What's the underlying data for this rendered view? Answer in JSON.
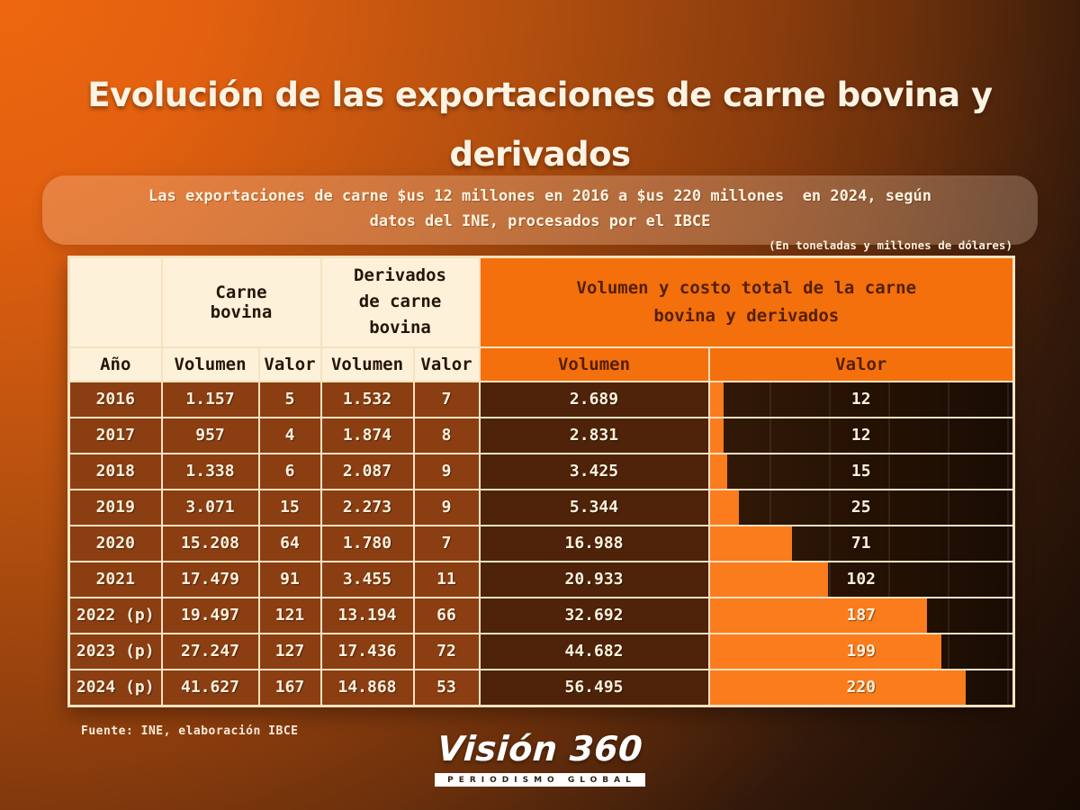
{
  "title": {
    "line1": "Evolución de las exportaciones de carne bovina y",
    "line2": "derivados"
  },
  "banner": {
    "line1": "Las exportaciones de carne $us 12 millones en 2016 a $us 220 millones  en 2024, según",
    "line2": "datos del INE, procesados por el IBCE"
  },
  "unit_note": "(En toneladas y millones de dólares)",
  "table": {
    "group_headers": {
      "carne": "Carne bovina",
      "derivados": "Derivados de carne bovina",
      "total": "Volumen y costo total de la carne bovina y derivados"
    },
    "column_headers": {
      "year": "Año",
      "vol1": "Volumen",
      "val1": "Valor",
      "vol2": "Volumen",
      "val2": "Valor",
      "total_vol": "Volumen",
      "total_val": "Valor"
    },
    "bar_axis_max": 260,
    "rows": [
      {
        "cells": [
          "2016",
          "1.157",
          "5",
          "1.532",
          "7",
          "2.689"
        ],
        "valor": 12,
        "valor_label": "12"
      },
      {
        "cells": [
          "2017",
          "957",
          "4",
          "1.874",
          "8",
          "2.831"
        ],
        "valor": 12,
        "valor_label": "12"
      },
      {
        "cells": [
          "2018",
          "1.338",
          "6",
          "2.087",
          "9",
          "3.425"
        ],
        "valor": 15,
        "valor_label": "15"
      },
      {
        "cells": [
          "2019",
          "3.071",
          "15",
          "2.273",
          "9",
          "5.344"
        ],
        "valor": 25,
        "valor_label": "25"
      },
      {
        "cells": [
          "2020",
          "15.208",
          "64",
          "1.780",
          "7",
          "16.988"
        ],
        "valor": 71,
        "valor_label": "71"
      },
      {
        "cells": [
          "2021",
          "17.479",
          "91",
          "3.455",
          "11",
          "20.933"
        ],
        "valor": 102,
        "valor_label": "102"
      },
      {
        "cells": [
          "2022 (p)",
          "19.497",
          "121",
          "13.194",
          "66",
          "32.692"
        ],
        "valor": 187,
        "valor_label": "187"
      },
      {
        "cells": [
          "2023 (p)",
          "27.247",
          "127",
          "17.436",
          "72",
          "44.682"
        ],
        "valor": 199,
        "valor_label": "199"
      },
      {
        "cells": [
          "2024 (p)",
          "41.627",
          "167",
          "14.868",
          "53",
          "56.495"
        ],
        "valor": 220,
        "valor_label": "220"
      }
    ]
  },
  "source": "Fuente: INE, elaboración IBCE",
  "logo": {
    "wordmark": "Visión 360",
    "tagline": "PERIODISMO GLOBAL"
  },
  "colors": {
    "accent_orange": "#f3700d",
    "bar_orange": "#fa7c1c",
    "cream_cell": "#fdf1d9",
    "row_brown": "#8a3e12",
    "total_volume_brown": "#4e2309",
    "valor_dark": "#2a1305",
    "border_cream": "#f5e2c0",
    "background_top_left": "#f0680f",
    "background_bottom_right": "#0e0702"
  },
  "chart_data": {
    "type": "table",
    "title": "Evolución de las exportaciones de carne bovina y derivados",
    "unit": "En toneladas y millones de dólares",
    "categories": [
      "2016",
      "2017",
      "2018",
      "2019",
      "2020",
      "2021",
      "2022 (p)",
      "2023 (p)",
      "2024 (p)"
    ],
    "series": [
      {
        "name": "Carne bovina - Volumen",
        "values": [
          1157,
          957,
          1338,
          3071,
          15208,
          17479,
          19497,
          27247,
          41627
        ]
      },
      {
        "name": "Carne bovina - Valor",
        "values": [
          5,
          4,
          6,
          15,
          64,
          91,
          121,
          127,
          167
        ]
      },
      {
        "name": "Derivados de carne bovina - Volumen",
        "values": [
          1532,
          1874,
          2087,
          2273,
          1780,
          3455,
          13194,
          17436,
          14868
        ]
      },
      {
        "name": "Derivados de carne bovina - Valor",
        "values": [
          7,
          8,
          9,
          9,
          7,
          11,
          66,
          72,
          53
        ]
      },
      {
        "name": "Total - Volumen",
        "values": [
          2689,
          2831,
          3425,
          5344,
          16988,
          20933,
          32692,
          44682,
          56495
        ]
      },
      {
        "name": "Total - Valor",
        "values": [
          12,
          12,
          15,
          25,
          71,
          102,
          187,
          199,
          220
        ],
        "rendered_as": "horizontal-bar"
      }
    ],
    "bar_axis_range": [
      0,
      260
    ],
    "legend_position": "none",
    "grid": false
  }
}
